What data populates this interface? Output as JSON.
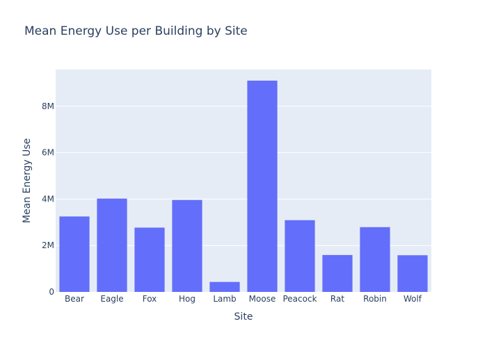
{
  "chart_data": {
    "type": "bar",
    "title": "Mean Energy Use per Building by Site",
    "xlabel": "Site",
    "ylabel": "Mean Energy Use",
    "categories": [
      "Bear",
      "Eagle",
      "Fox",
      "Hog",
      "Lamb",
      "Moose",
      "Peacock",
      "Rat",
      "Robin",
      "Wolf"
    ],
    "values": [
      3250000,
      4020000,
      2770000,
      3960000,
      430000,
      9100000,
      3090000,
      1590000,
      2790000,
      1580000
    ],
    "ylim": [
      0,
      9580000
    ],
    "yticks": [
      0,
      2000000,
      4000000,
      6000000,
      8000000
    ],
    "ytick_labels": [
      "0",
      "2M",
      "4M",
      "6M",
      "8M"
    ],
    "grid": true,
    "colors": {
      "bar": "#636efa",
      "plot_background": "#e5ecf6",
      "gridline": "#ffffff",
      "text": "#2a3f5f"
    }
  }
}
